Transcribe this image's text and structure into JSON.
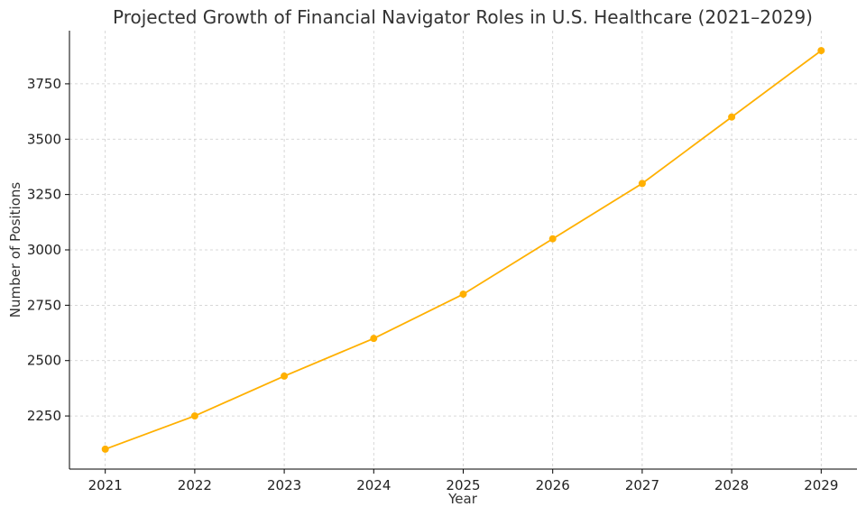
{
  "chart_data": {
    "type": "line",
    "title": "Projected Growth of Financial Navigator Roles in U.S. Healthcare (2021–2029)",
    "xlabel": "Year",
    "ylabel": "Number of Positions",
    "x": [
      2021,
      2022,
      2023,
      2024,
      2025,
      2026,
      2027,
      2028,
      2029
    ],
    "series": [
      {
        "values": [
          2100,
          2250,
          2430,
          2600,
          2800,
          3050,
          3300,
          3600,
          3900
        ],
        "color": "#ffb000"
      }
    ],
    "xlim": [
      2020.6,
      2029.4
    ],
    "ylim": [
      2010,
      3990
    ],
    "yticks": [
      2250,
      2500,
      2750,
      3000,
      3250,
      3500,
      3750
    ],
    "grid": true,
    "legend": "none"
  }
}
